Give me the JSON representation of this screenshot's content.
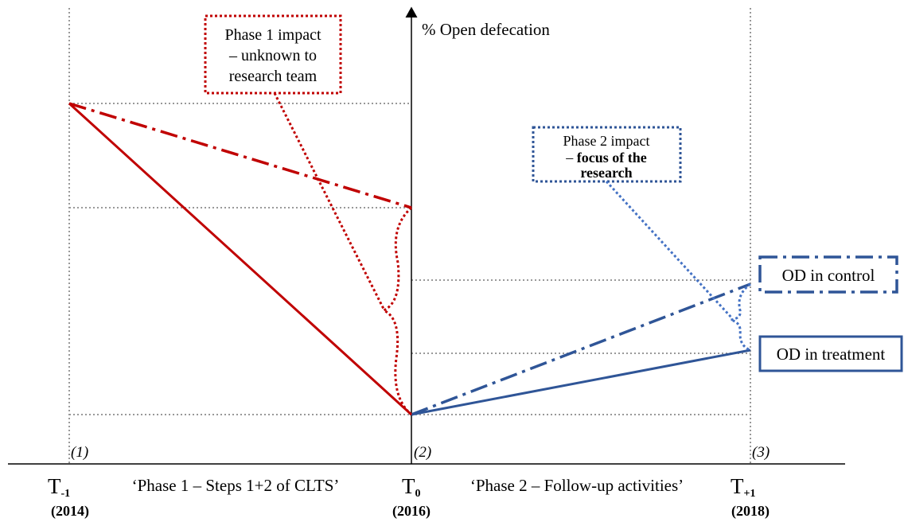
{
  "y_axis_label": "% Open defecation",
  "phase1_impact": [
    "Phase 1 impact",
    "– unknown to",
    "research team"
  ],
  "phase2_impact": {
    "line1": "Phase 2 impact",
    "line2_plain": "–",
    "line2_bold": "focus of the",
    "line3_bold": "research"
  },
  "legend": {
    "control": "OD in control",
    "treatment": "OD in treatment"
  },
  "points": [
    "(1)",
    "(2)",
    "(3)"
  ],
  "times": [
    {
      "base": "T",
      "sub": "-1",
      "year": "(2014)"
    },
    {
      "base": "T",
      "sub": "0",
      "year": "(2016)"
    },
    {
      "base": "T",
      "sub": "+1",
      "year": "(2018)"
    }
  ],
  "phases": [
    "‘Phase 1 – Steps 1+2 of CLTS’",
    "‘Phase 2 – Follow-up activities’"
  ]
}
